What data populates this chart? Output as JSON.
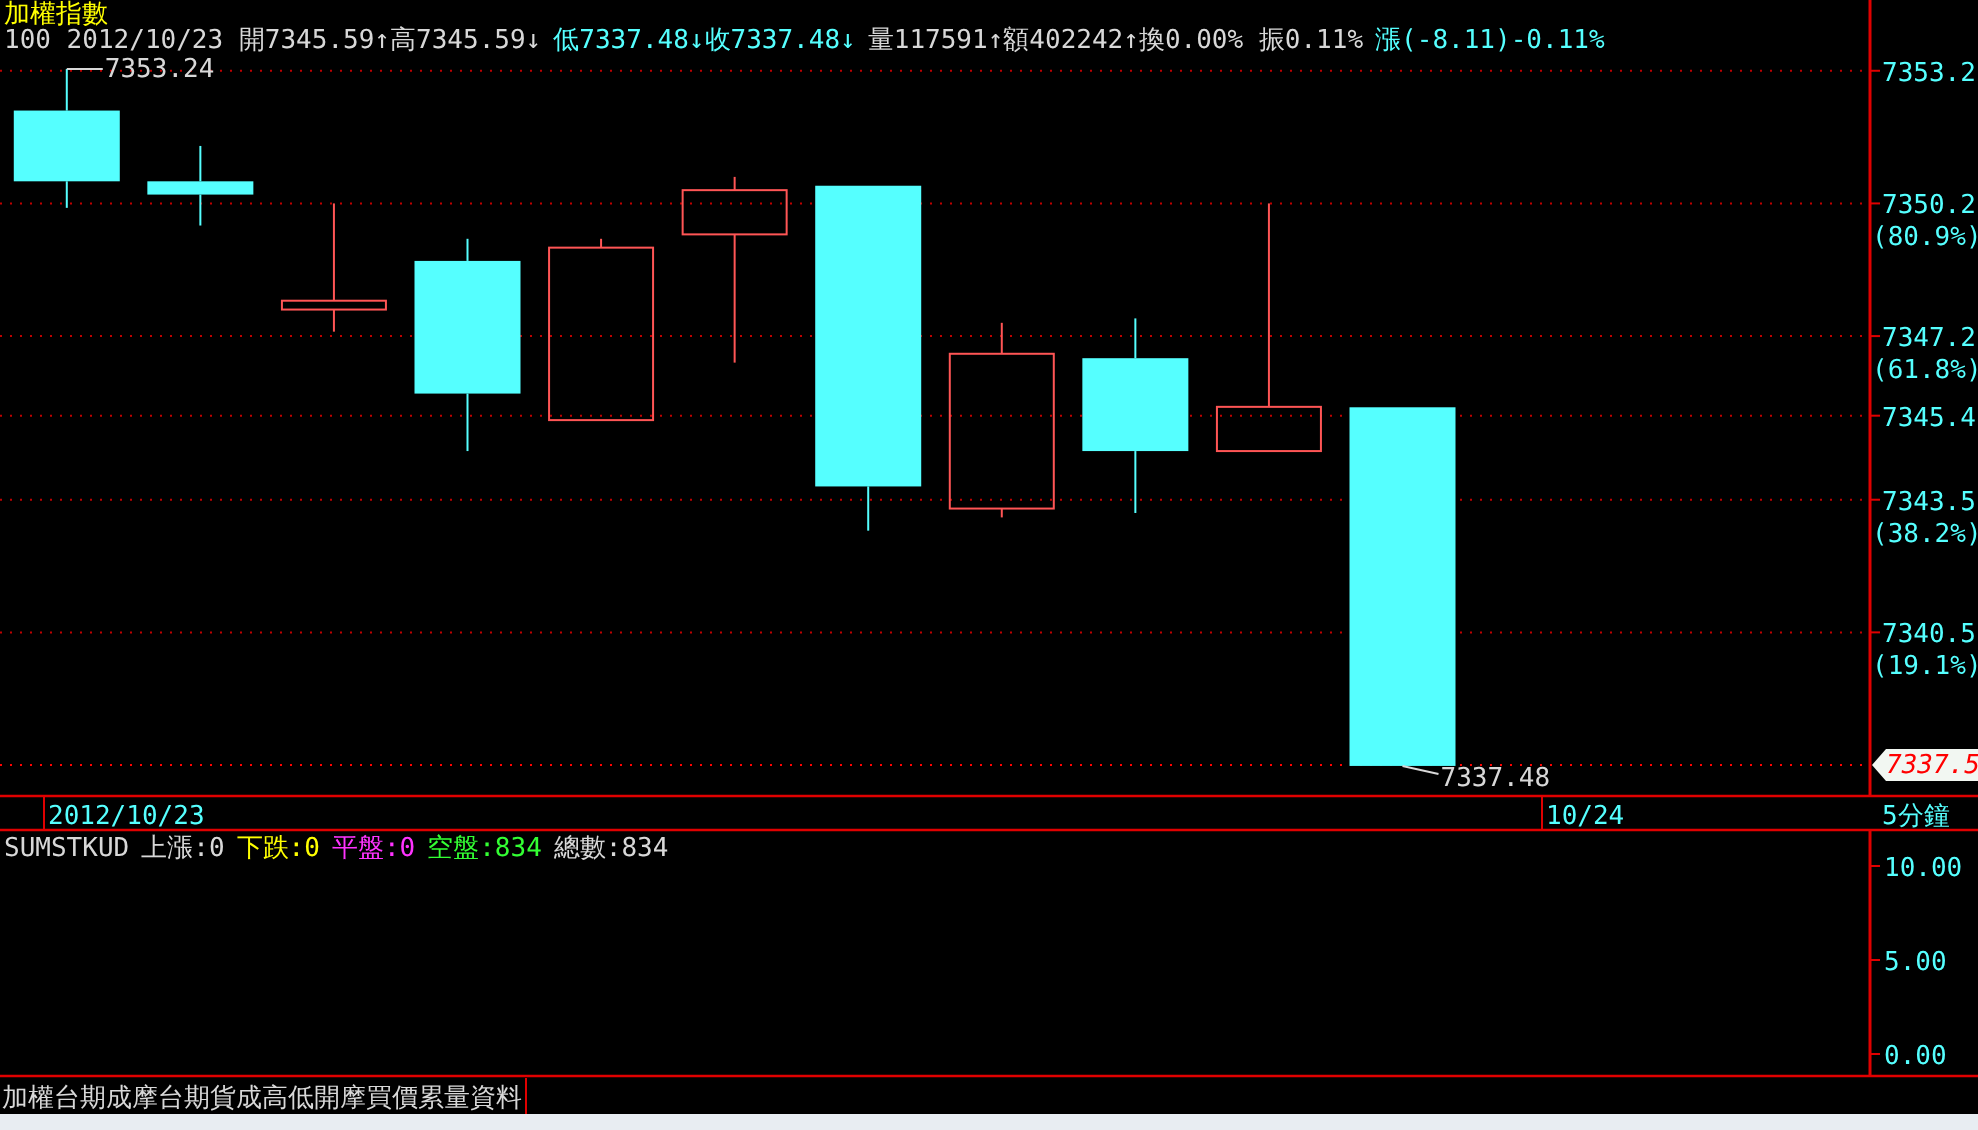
{
  "chart_data": [
    {
      "type": "candlestick",
      "title": "加權指數",
      "xlabel": "5分鐘",
      "categories": [
        null,
        null,
        null,
        null,
        null,
        null,
        null,
        null,
        null,
        null,
        null,
        null,
        null,
        null
      ],
      "ohlc": [
        [
          7352.3,
          7353.24,
          7350.1,
          7350.7
        ],
        [
          7350.7,
          7351.5,
          7349.7,
          7350.4
        ],
        [
          7347.8,
          7350.2,
          7347.3,
          7348.0
        ],
        [
          7348.9,
          7349.4,
          7344.6,
          7345.9
        ],
        [
          7345.3,
          7349.4,
          7345.3,
          7349.2
        ],
        [
          7349.5,
          7350.8,
          7346.6,
          7350.5
        ],
        [
          7350.6,
          7350.6,
          7342.8,
          7343.8
        ],
        [
          7343.3,
          7347.5,
          7343.1,
          7346.8
        ],
        [
          7346.7,
          7347.6,
          7343.2,
          7344.6
        ],
        [
          7344.6,
          7350.2,
          7344.6,
          7345.6
        ],
        [
          7345.59,
          7345.59,
          7337.48,
          7337.48
        ],
        null,
        null,
        null
      ],
      "ylim": [
        7336.8,
        7354.8
      ],
      "yticks": [
        7353.2,
        {
          "value": 7350.2,
          "label": "7350.2 (80.9%)"
        },
        {
          "value": 7347.2,
          "label": "7347.2 (61.8%)"
        },
        7345.4,
        {
          "value": 7343.5,
          "label": "7343.5 (38.2%)"
        },
        {
          "value": 7340.5,
          "label": "7340.5 (19.1%)"
        }
      ],
      "ref_lines": [
        {
          "axis": "y",
          "value": 7337.5,
          "label": "7337.5",
          "color": "#ff0000"
        }
      ],
      "grid": "y",
      "annotations": [
        "100 2012/10/23 開7345.59↑高7345.59↓",
        "低7337.48↓收7337.48↓",
        "量117591↑額402242↑換0.00% 振0.11%",
        "漲(-8.11)-0.11%",
        "7353.24",
        "7337.48",
        "2012/10/23",
        "10/24"
      ]
    },
    {
      "type": "other",
      "title": "SUMSTKUD",
      "annotations": [
        "上漲:0",
        "下跌:0",
        "平盤:0",
        "空盤:834",
        "總數:834",
        "加權台期成摩台期貨成高低開摩買價累量資料",
        "10.00",
        "5.00",
        "0.00"
      ]
    }
  ]
}
